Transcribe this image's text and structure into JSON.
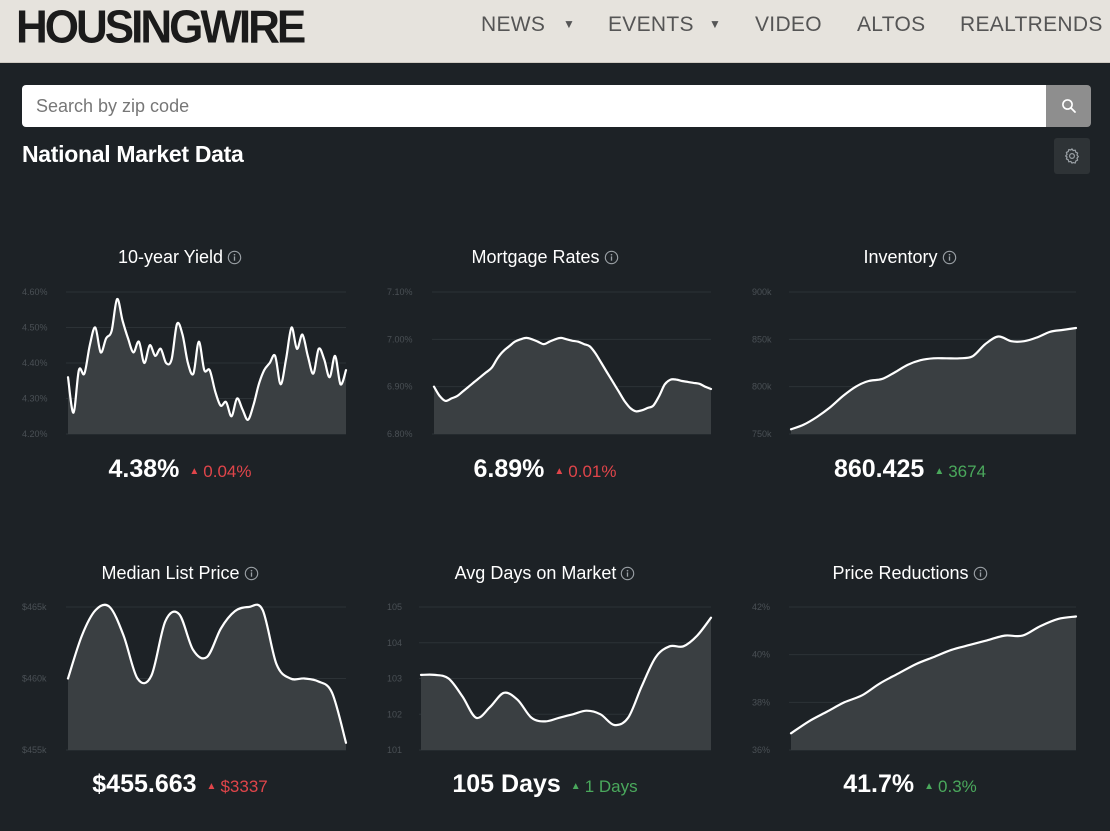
{
  "header": {
    "logo": "HOUSINGWIRE",
    "nav": [
      {
        "label": "NEWS",
        "has_dropdown": true
      },
      {
        "label": "EVENTS",
        "has_dropdown": true
      },
      {
        "label": "VIDEO",
        "has_dropdown": false
      },
      {
        "label": "ALTOS",
        "has_dropdown": false
      },
      {
        "label": "REALTRENDS",
        "has_dropdown": false
      }
    ]
  },
  "search": {
    "placeholder": "Search by zip code",
    "value": ""
  },
  "section": {
    "title": "National Market Data"
  },
  "colors": {
    "up": "#4aa85c",
    "down": "#e0454a",
    "area": "#3a3f42",
    "line": "#ffffff"
  },
  "icons": {
    "search": "search-icon",
    "settings": "gear-icon",
    "info": "info-icon",
    "up": "triangle-up-icon",
    "down": "triangle-down-icon"
  },
  "cards": [
    {
      "title": "10-year Yield",
      "value": "4.38%",
      "delta": "0.04%",
      "direction": "down",
      "chart_data": {
        "type": "area",
        "y_ticks": [
          "4.60%",
          "4.50%",
          "4.40%",
          "4.30%",
          "4.20%"
        ],
        "ylim": [
          4.2,
          4.6
        ],
        "values": [
          4.36,
          4.26,
          4.38,
          4.37,
          4.45,
          4.5,
          4.43,
          4.47,
          4.49,
          4.58,
          4.52,
          4.47,
          4.43,
          4.46,
          4.4,
          4.45,
          4.42,
          4.44,
          4.4,
          4.41,
          4.51,
          4.48,
          4.4,
          4.37,
          4.46,
          4.38,
          4.38,
          4.32,
          4.28,
          4.29,
          4.25,
          4.3,
          4.27,
          4.24,
          4.28,
          4.34,
          4.38,
          4.4,
          4.42,
          4.34,
          4.41,
          4.5,
          4.44,
          4.48,
          4.42,
          4.37,
          4.44,
          4.41,
          4.36,
          4.42,
          4.34,
          4.38
        ]
      }
    },
    {
      "title": "Mortgage Rates",
      "value": "6.89%",
      "delta": "0.01%",
      "direction": "down",
      "chart_data": {
        "type": "area",
        "y_ticks": [
          "7.10%",
          "7.00%",
          "6.90%",
          "6.80%"
        ],
        "ylim": [
          6.8,
          7.1
        ],
        "values": [
          6.9,
          6.88,
          6.87,
          6.875,
          6.88,
          6.89,
          6.9,
          6.91,
          6.92,
          6.93,
          6.94,
          6.96,
          6.975,
          6.985,
          6.995,
          7.0,
          7.003,
          7.0,
          6.995,
          6.99,
          6.995,
          7.0,
          7.003,
          7.0,
          6.997,
          6.995,
          6.99,
          6.985,
          6.97,
          6.95,
          6.93,
          6.91,
          6.89,
          6.87,
          6.855,
          6.848,
          6.85,
          6.855,
          6.86,
          6.88,
          6.905,
          6.915,
          6.915,
          6.912,
          6.91,
          6.908,
          6.906,
          6.9,
          6.895
        ]
      }
    },
    {
      "title": "Inventory",
      "value": "860.425",
      "delta": "3674",
      "direction": "up",
      "chart_data": {
        "type": "area",
        "y_ticks": [
          "900k",
          "850k",
          "800k",
          "750k"
        ],
        "ylim": [
          750,
          900
        ],
        "values": [
          755,
          760,
          768,
          778,
          790,
          800,
          806,
          808,
          815,
          823,
          828,
          830,
          830,
          830,
          832,
          845,
          853,
          848,
          848,
          852,
          858,
          860,
          862
        ]
      }
    },
    {
      "title": "Median List Price",
      "value": "$455.663",
      "delta": "$3337",
      "direction": "down",
      "chart_data": {
        "type": "area",
        "y_ticks": [
          "$465k",
          "$460k",
          "$455k"
        ],
        "ylim": [
          455,
          465
        ],
        "values": [
          460,
          463,
          464.8,
          465,
          463,
          460,
          460.2,
          464,
          464.5,
          462,
          461.5,
          463.5,
          464.7,
          465,
          464.8,
          461,
          460,
          460,
          459.8,
          459,
          455.5
        ]
      }
    },
    {
      "title": "Avg Days on Market",
      "value": "105 Days",
      "delta": "1 Days",
      "direction": "up",
      "chart_data": {
        "type": "area",
        "y_ticks": [
          "105",
          "104",
          "103",
          "102",
          "101"
        ],
        "ylim": [
          101,
          105
        ],
        "values": [
          103.1,
          103.1,
          103.0,
          102.5,
          101.9,
          102.2,
          102.6,
          102.4,
          101.9,
          101.8,
          101.9,
          102.0,
          102.1,
          102.0,
          101.7,
          101.9,
          102.8,
          103.6,
          103.9,
          103.9,
          104.2,
          104.7
        ]
      }
    },
    {
      "title": "Price Reductions",
      "value": "41.7%",
      "delta": "0.3%",
      "direction": "up",
      "chart_data": {
        "type": "area",
        "y_ticks": [
          "42%",
          "40%",
          "38%",
          "36%"
        ],
        "ylim": [
          36,
          42
        ],
        "values": [
          36.7,
          37.2,
          37.6,
          38.0,
          38.3,
          38.8,
          39.2,
          39.6,
          39.9,
          40.2,
          40.4,
          40.6,
          40.8,
          40.8,
          41.2,
          41.5,
          41.6
        ]
      }
    }
  ]
}
